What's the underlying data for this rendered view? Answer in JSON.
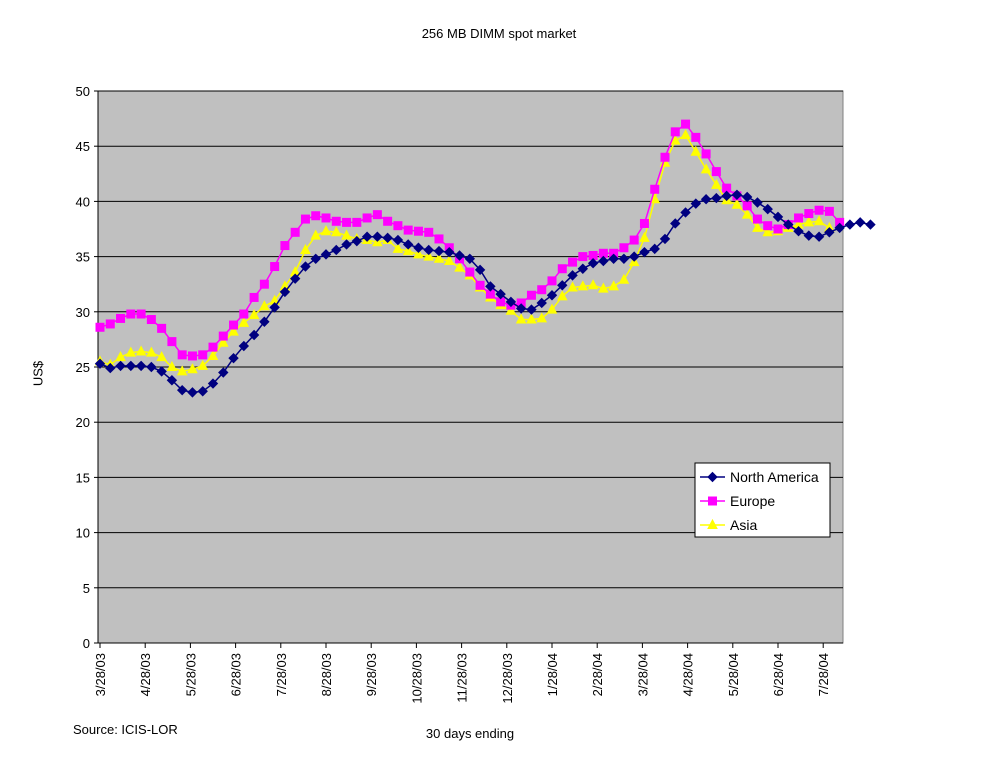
{
  "chart_data": {
    "type": "line",
    "title": "256 MB DIMM spot market",
    "xlabel": "30 days ending",
    "ylabel": "US$",
    "source": "Source: ICIS-LOR",
    "ylim": [
      0,
      50
    ],
    "yticks": [
      0,
      5,
      10,
      15,
      20,
      25,
      30,
      35,
      40,
      45,
      50
    ],
    "grid": true,
    "legend_position": "bottom-right",
    "x_tick_labels": [
      "3/28/03",
      "4/28/03",
      "5/28/03",
      "6/28/03",
      "7/28/03",
      "8/28/03",
      "9/28/03",
      "10/28/03",
      "11/28/03",
      "12/28/03",
      "1/28/04",
      "2/28/04",
      "3/28/04",
      "4/28/04",
      "5/28/04",
      "6/28/04",
      "7/28/04"
    ],
    "points_per_month": 4.4,
    "series": [
      {
        "name": "North America",
        "color": "#000080",
        "marker": "diamond",
        "values": [
          25.3,
          24.9,
          25.1,
          25.1,
          25.1,
          25.0,
          24.6,
          23.8,
          22.9,
          22.7,
          22.8,
          23.5,
          24.5,
          25.8,
          26.9,
          27.9,
          29.1,
          30.4,
          31.8,
          33.0,
          34.1,
          34.8,
          35.2,
          35.6,
          36.1,
          36.4,
          36.8,
          36.8,
          36.7,
          36.5,
          36.1,
          35.8,
          35.6,
          35.5,
          35.4,
          35.1,
          34.8,
          33.8,
          32.3,
          31.6,
          30.9,
          30.3,
          30.2,
          30.8,
          31.5,
          32.4,
          33.3,
          33.9,
          34.4,
          34.6,
          34.8,
          34.8,
          35.0,
          35.4,
          35.7,
          36.6,
          38.0,
          39.0,
          39.8,
          40.2,
          40.3,
          40.5,
          40.6,
          40.4,
          39.9,
          39.3,
          38.6,
          37.9,
          37.3,
          36.9,
          36.8,
          37.2,
          37.6,
          37.9,
          38.1,
          37.9
        ]
      },
      {
        "name": "Europe",
        "color": "#ff00ff",
        "marker": "square",
        "values": [
          28.6,
          28.9,
          29.4,
          29.8,
          29.8,
          29.3,
          28.5,
          27.3,
          26.1,
          26.0,
          26.1,
          26.8,
          27.8,
          28.8,
          29.8,
          31.3,
          32.5,
          34.1,
          36.0,
          37.2,
          38.4,
          38.7,
          38.5,
          38.2,
          38.1,
          38.1,
          38.5,
          38.8,
          38.2,
          37.8,
          37.4,
          37.3,
          37.2,
          36.6,
          35.8,
          34.8,
          33.6,
          32.4,
          31.6,
          30.9,
          30.6,
          30.8,
          31.5,
          32.0,
          32.8,
          33.9,
          34.5,
          35.0,
          35.1,
          35.3,
          35.3,
          35.8,
          36.5,
          38.0,
          41.1,
          44.0,
          46.3,
          47.0,
          45.8,
          44.3,
          42.7,
          41.2,
          40.5,
          39.6,
          38.4,
          37.8,
          37.5,
          37.9,
          38.5,
          38.9,
          39.2,
          39.1,
          38.1
        ]
      },
      {
        "name": "Asia",
        "color": "#ffff00",
        "marker": "triangle",
        "values": [
          25.5,
          25.2,
          25.9,
          26.3,
          26.4,
          26.3,
          25.9,
          25.0,
          24.6,
          24.8,
          25.1,
          26.0,
          27.2,
          28.2,
          29.0,
          29.7,
          30.5,
          31.0,
          32.3,
          33.6,
          35.6,
          36.9,
          37.3,
          37.2,
          36.9,
          36.6,
          36.5,
          36.3,
          36.5,
          35.7,
          35.5,
          35.2,
          35.0,
          34.8,
          34.6,
          34.0,
          33.3,
          32.2,
          31.3,
          30.6,
          30.1,
          29.3,
          29.3,
          29.4,
          30.2,
          31.4,
          32.2,
          32.3,
          32.4,
          32.1,
          32.3,
          32.9,
          34.5,
          36.7,
          40.2,
          43.5,
          45.5,
          46.0,
          44.5,
          42.9,
          41.5,
          40.1,
          39.7,
          38.8,
          37.6,
          37.2,
          37.3,
          37.6,
          37.9,
          38.1,
          38.2,
          37.6
        ]
      }
    ]
  }
}
